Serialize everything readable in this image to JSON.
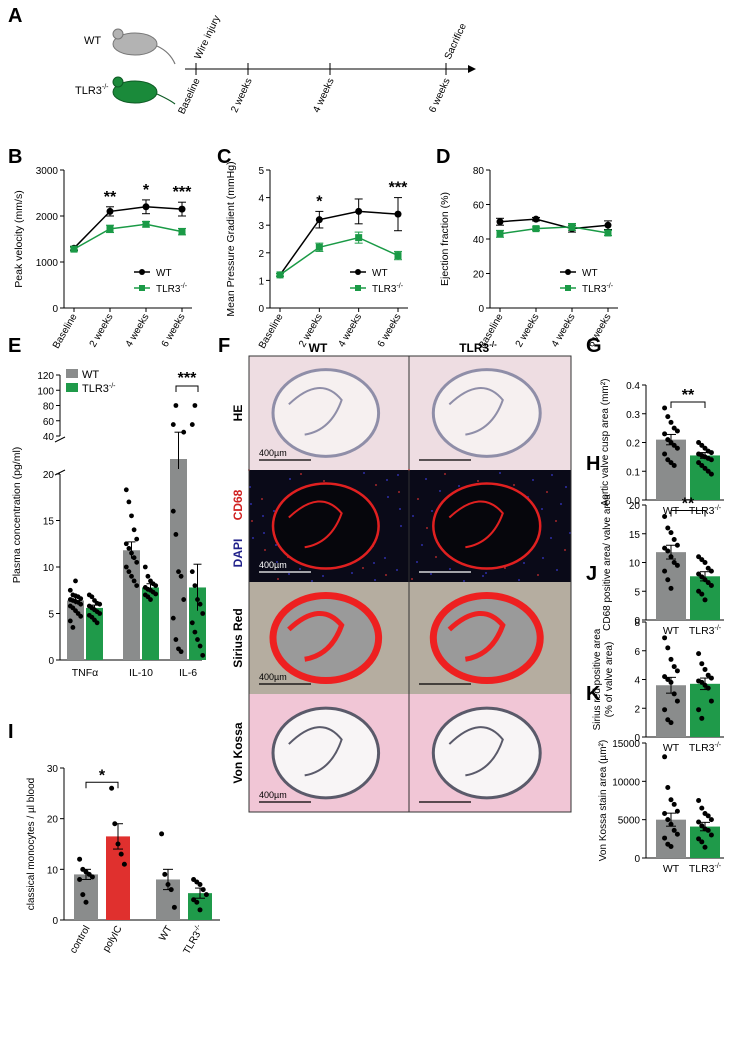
{
  "figure": {
    "panels": [
      "A",
      "B",
      "C",
      "D",
      "E",
      "F",
      "G",
      "H",
      "I",
      "J",
      "K"
    ]
  },
  "timeline": {
    "groups": [
      "WT",
      "TLR3"
    ],
    "group_superscript": "-/-",
    "events": [
      "Wire injury",
      "Sacrifice"
    ],
    "timepoints": [
      "Baseline",
      "2 weeks",
      "4 weeks",
      "6 weeks"
    ],
    "colors": {
      "wt_mouse": "#b3b3b3",
      "tlr3_mouse": "#1a8a3a"
    }
  },
  "legend": {
    "wt": "WT",
    "tlr3": "TLR3",
    "sup": "-/-"
  },
  "colors": {
    "wt": "#000000",
    "tlr3": "#1a9a46",
    "bar_gray": "#8a8c8c",
    "bar_green": "#1f9a4a",
    "bar_red": "#e0302e"
  },
  "micro": {
    "columns": [
      "WT",
      "TLR3"
    ],
    "col_sup": "-/-",
    "rows": [
      "HE",
      "CD68",
      "DAPI",
      "Sirius Red",
      "Von Kossa"
    ],
    "scale_label": "400µm"
  },
  "chart_data": [
    {
      "panel": "B",
      "type": "line",
      "categories": [
        "Baseline",
        "2 weeks",
        "4 weeks",
        "6 weeks"
      ],
      "ylabel": "Peak velocity (mm/s)",
      "ylim": [
        0,
        3000
      ],
      "yticks": [
        0,
        1000,
        2000,
        3000
      ],
      "series": [
        {
          "name": "WT",
          "values": [
            1300,
            2100,
            2200,
            2150
          ],
          "err": [
            40,
            100,
            150,
            150
          ]
        },
        {
          "name": "TLR3-/-",
          "values": [
            1280,
            1720,
            1820,
            1660
          ],
          "err": [
            40,
            80,
            60,
            70
          ]
        }
      ],
      "significance": [
        "",
        "**",
        "*",
        "***"
      ],
      "legend_position": "bottom-right"
    },
    {
      "panel": "C",
      "type": "line",
      "categories": [
        "Baseline",
        "2 weeks",
        "4 weeks",
        "6 weeks"
      ],
      "ylabel": "Mean Pressure Gradient (mmHg)",
      "ylim": [
        0,
        5
      ],
      "yticks": [
        0,
        1,
        2,
        3,
        4,
        5
      ],
      "series": [
        {
          "name": "WT",
          "values": [
            1.2,
            3.2,
            3.5,
            3.4
          ],
          "err": [
            0.05,
            0.3,
            0.45,
            0.6
          ]
        },
        {
          "name": "TLR3-/-",
          "values": [
            1.2,
            2.2,
            2.55,
            1.9
          ],
          "err": [
            0.05,
            0.15,
            0.2,
            0.15
          ]
        }
      ],
      "significance": [
        "",
        "*",
        "",
        "***"
      ],
      "legend_position": "bottom-right"
    },
    {
      "panel": "D",
      "type": "line",
      "categories": [
        "Baseline",
        "2 weeks",
        "4 weeks",
        "6 weeks"
      ],
      "ylabel": "Ejection fraction (%)",
      "ylim": [
        0,
        80
      ],
      "yticks": [
        0,
        20,
        40,
        60,
        80
      ],
      "series": [
        {
          "name": "WT",
          "values": [
            50,
            51.5,
            46,
            48
          ],
          "err": [
            2,
            1,
            2,
            2.5
          ]
        },
        {
          "name": "TLR3-/-",
          "values": [
            43,
            46,
            47,
            43.5
          ],
          "err": [
            2,
            1,
            2,
            1.5
          ]
        }
      ],
      "legend_position": "bottom-right"
    },
    {
      "panel": "E",
      "type": "bar",
      "categories": [
        "TNFα",
        "IL-10",
        "IL-6"
      ],
      "ylabel": "Plasma concentration (pg/ml)",
      "yticks_lower": [
        0,
        5,
        10,
        15,
        20
      ],
      "yticks_upper": [
        40,
        60,
        80,
        100,
        120
      ],
      "series": [
        {
          "name": "WT",
          "values": [
            6.4,
            11.8,
            35
          ],
          "err": [
            0.4,
            0.9,
            10
          ]
        },
        {
          "name": "TLR3-/-",
          "values": [
            5.6,
            7.8,
            7.8
          ],
          "err": [
            0.3,
            0.4,
            2.5
          ]
        }
      ],
      "points": {
        "WT": [
          [
            7.5,
            7.0,
            6.9,
            6.8,
            6.6,
            6.5,
            6.4,
            6.3,
            6.2,
            6.0,
            5.8,
            5.6,
            5.3,
            5.0,
            4.7,
            4.2,
            3.5,
            8.5
          ],
          [
            18.3,
            17.0,
            15.5,
            14.0,
            13.0,
            12.5,
            12.0,
            11.5,
            11.0,
            10.5,
            10.0,
            9.5,
            9.0,
            8.5,
            8.0
          ],
          [
            16.0,
            13.5,
            9.5,
            9.0,
            6.5,
            4.5,
            2.2,
            1.2,
            0.9,
            45,
            55,
            80
          ]
        ],
        "TLR3-/-": [
          [
            7.0,
            6.8,
            6.4,
            6.1,
            6.0,
            5.8,
            5.6,
            5.4,
            5.2,
            5.0,
            4.8,
            4.6,
            4.3,
            4.0
          ],
          [
            10.0,
            9.0,
            8.5,
            8.2,
            8.0,
            7.8,
            7.6,
            7.5,
            7.3,
            7.1,
            7.0,
            6.8,
            6.5
          ],
          [
            9.5,
            8.0,
            6.5,
            6.0,
            5.0,
            4.0,
            3.0,
            2.2,
            1.5,
            0.5,
            55,
            80
          ]
        ]
      },
      "significance": "***",
      "legend_position": "top-left"
    },
    {
      "panel": "G",
      "type": "bar",
      "categories": [
        "WT",
        "TLR3-/-"
      ],
      "ylabel": "Aortic valve cusp area (mm²)",
      "ylim": [
        0,
        0.4
      ],
      "yticks": [
        0.0,
        0.1,
        0.2,
        0.3,
        0.4
      ],
      "values": [
        0.21,
        0.155
      ],
      "err": [
        0.018,
        0.01
      ],
      "points": [
        [
          0.32,
          0.29,
          0.27,
          0.25,
          0.24,
          0.23,
          0.21,
          0.2,
          0.19,
          0.18,
          0.16,
          0.14,
          0.13,
          0.12
        ],
        [
          0.2,
          0.19,
          0.18,
          0.17,
          0.165,
          0.16,
          0.155,
          0.15,
          0.145,
          0.14,
          0.13,
          0.12,
          0.11,
          0.1,
          0.09
        ]
      ],
      "significance": "**"
    },
    {
      "panel": "H",
      "type": "bar",
      "categories": [
        "WT",
        "TLR3-/-"
      ],
      "ylabel": "CD68 positive area/ valve area",
      "ylim": [
        0,
        20
      ],
      "yticks": [
        0,
        5,
        10,
        15,
        20
      ],
      "values": [
        11.8,
        7.6
      ],
      "err": [
        1.2,
        0.8
      ],
      "points": [
        [
          18.0,
          16.0,
          15.2,
          14.0,
          13.0,
          12.5,
          12.0,
          11.0,
          10.0,
          9.5,
          8.5,
          7.0,
          5.5
        ],
        [
          11.0,
          10.5,
          10.0,
          9.0,
          8.5,
          8.0,
          7.5,
          7.0,
          6.5,
          6.0,
          5.0,
          4.5,
          3.5
        ]
      ],
      "significance": "**"
    },
    {
      "panel": "I",
      "type": "bar",
      "categories": [
        "control",
        "polyIC",
        "WT",
        "TLR3-/-"
      ],
      "ylabel": "classical monocytes / µl blood",
      "ylim": [
        0,
        30
      ],
      "yticks": [
        0,
        10,
        20,
        30
      ],
      "values": [
        9.0,
        16.5,
        8.0,
        5.3
      ],
      "err": [
        1.0,
        2.5,
        2.0,
        1.0
      ],
      "points": [
        [
          12,
          10,
          9.5,
          9,
          8.5,
          8,
          5,
          3.5
        ],
        [
          26,
          19,
          15,
          13,
          11
        ],
        [
          17,
          9,
          7,
          6,
          2.5
        ],
        [
          8,
          7.5,
          7,
          6,
          5,
          4,
          3.5,
          2
        ]
      ],
      "significance": "*"
    },
    {
      "panel": "J",
      "type": "bar",
      "categories": [
        "WT",
        "TLR3-/-"
      ],
      "ylabel": "Sirius red positive area (% of valve area)",
      "ylim": [
        0,
        8
      ],
      "yticks": [
        0,
        2,
        4,
        6,
        8
      ],
      "values": [
        3.6,
        3.7
      ],
      "err": [
        0.55,
        0.4
      ],
      "points": [
        [
          6.9,
          6.2,
          5.4,
          4.9,
          4.6,
          4.2,
          4.0,
          3.8,
          3.0,
          2.5,
          1.9,
          1.2,
          1.0
        ],
        [
          5.8,
          5.1,
          4.7,
          4.3,
          4.1,
          3.9,
          3.8,
          3.6,
          3.4,
          2.5,
          1.9,
          1.3
        ]
      ]
    },
    {
      "panel": "K",
      "type": "bar",
      "categories": [
        "WT",
        "TLR3-/-"
      ],
      "ylabel": "Von Kossa stain area (µm²)",
      "ylim": [
        0,
        15000
      ],
      "yticks": [
        0,
        5000,
        10000,
        15000
      ],
      "values": [
        5000,
        4100
      ],
      "err": [
        850,
        550
      ],
      "points": [
        [
          13200,
          9200,
          7600,
          7000,
          6100,
          5800,
          5000,
          4400,
          3600,
          3100,
          2600,
          1800,
          1500
        ],
        [
          7500,
          6500,
          5800,
          5500,
          5000,
          4700,
          4200,
          3800,
          3600,
          3000,
          2500,
          2100,
          1400
        ]
      ]
    }
  ]
}
